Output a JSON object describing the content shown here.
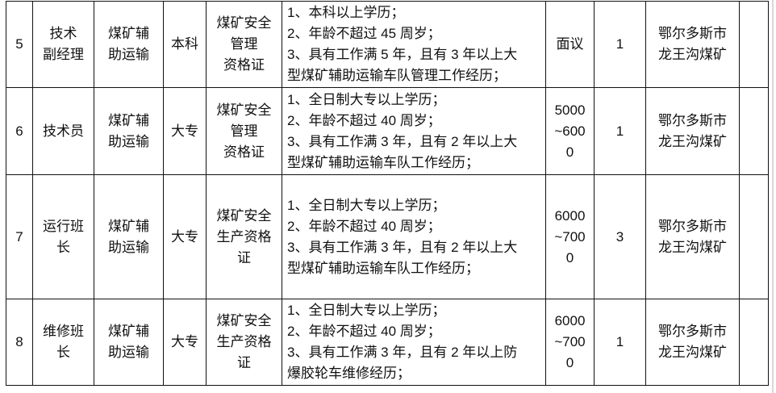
{
  "rows": [
    {
      "no": "5",
      "title": [
        "技术",
        "副经理"
      ],
      "dept": [
        "煤矿辅",
        "助运输"
      ],
      "edu": "本科",
      "cert": [
        "煤矿安全",
        "管理",
        "资格证"
      ],
      "req": [
        "1、本科以上学历；",
        "2、年龄不超过 45 周岁；",
        "3、具有工作满 5 年，且有 3 年以上大",
        "型煤矿辅助运输车队管理工作经历；"
      ],
      "salary": [
        "面议"
      ],
      "count": "1",
      "location": [
        "鄂尔多斯市",
        "龙王沟煤矿"
      ],
      "note": ""
    },
    {
      "no": "6",
      "title": [
        "技术员"
      ],
      "dept": [
        "煤矿辅",
        "助运输"
      ],
      "edu": "大专",
      "cert": [
        "煤矿安全",
        "管理",
        "资格证"
      ],
      "req": [
        "1、全日制大专以上学历；",
        "2、年龄不超过 40 周岁；",
        "3、具有工作满 3 年，且有 2 年以上大",
        "型煤矿辅助运输车队工作经历；"
      ],
      "salary": [
        "5000",
        "~600",
        "0"
      ],
      "count": "1",
      "location": [
        "鄂尔多斯市",
        "龙王沟煤矿"
      ],
      "note": ""
    },
    {
      "no": "7",
      "title": [
        "运行班",
        "长"
      ],
      "dept": [
        "煤矿辅",
        "助运输"
      ],
      "edu": "大专",
      "cert": [
        "煤矿安全",
        "生产资格",
        "证"
      ],
      "req": [
        "1、全日制大专以上学历；",
        "2、年龄不超过 40 周岁；",
        "3、具有工作满 3 年，且有 2 年以上大",
        "型煤矿辅助运输车队工作经历；"
      ],
      "salary": [
        "6000",
        "~700",
        "0"
      ],
      "count": "3",
      "location": [
        "鄂尔多斯市",
        "龙王沟煤矿"
      ],
      "note": ""
    },
    {
      "no": "8",
      "title": [
        "维修班",
        "长"
      ],
      "dept": [
        "煤矿辅",
        "助运输"
      ],
      "edu": "大专",
      "cert": [
        "煤矿安全",
        "生产资格",
        "证"
      ],
      "req": [
        "1、全日制大专以上学历；",
        "2、年龄不超过 40 周岁；",
        "3、具有工作满 3 年，且有 2 年以上防",
        "爆胶轮车维修经历；"
      ],
      "salary": [
        "6000",
        "~700",
        "0"
      ],
      "count": "1",
      "location": [
        "鄂尔多斯市",
        "龙王沟煤矿"
      ],
      "note": ""
    }
  ]
}
